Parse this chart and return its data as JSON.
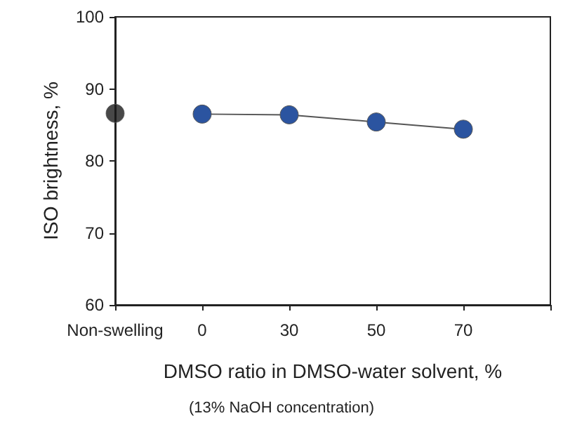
{
  "chart_data": {
    "type": "line",
    "xlabel": "DMSO ratio in DMSO-water solvent, %",
    "ylabel": "ISO brightness, %",
    "annotations": [
      "(13% NaOH concentration)"
    ],
    "categories": [
      "Non-swelling",
      "0",
      "30",
      "50",
      "70",
      null
    ],
    "series": [
      {
        "type": "scatter",
        "color": "#1a1a1a",
        "values": [
          86.6,
          null,
          null,
          null,
          null,
          null
        ]
      },
      {
        "color": "#2b54a0",
        "values": [
          null,
          86.5,
          86.4,
          85.4,
          84.4,
          null
        ]
      }
    ],
    "ylim": [
      60,
      100
    ],
    "yticks": [
      60,
      70,
      80,
      90,
      100
    ],
    "grid": false,
    "marker": "circle",
    "line_style": "solid"
  }
}
